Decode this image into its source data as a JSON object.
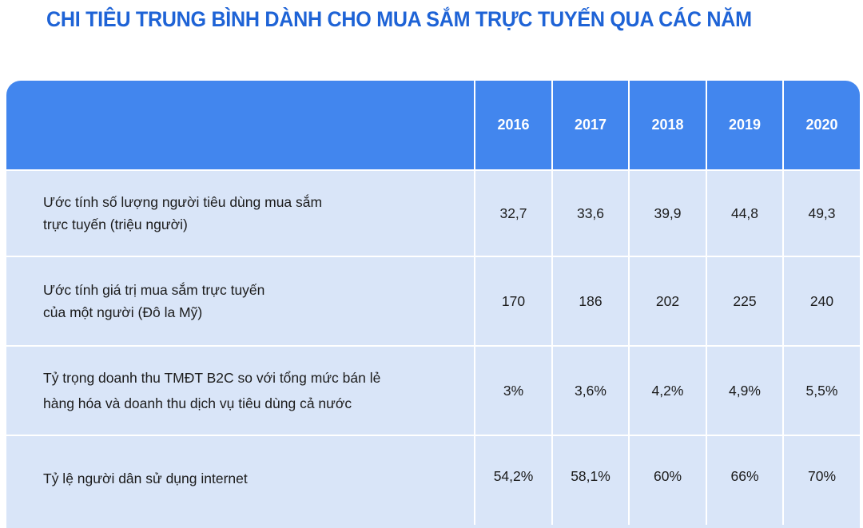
{
  "title": "CHI TIÊU TRUNG BÌNH DÀNH CHO MUA SẮM TRỰC TUYẾN QUA CÁC NĂM",
  "table": {
    "years": [
      "2016",
      "2017",
      "2018",
      "2019",
      "2020"
    ],
    "rows": [
      {
        "label_line1": "Ước tính số lượng người tiêu dùng mua sắm",
        "label_line2": "trực tuyến (triệu người)",
        "values": [
          "32,7",
          "33,6",
          "39,9",
          "44,8",
          "49,3"
        ]
      },
      {
        "label_line1": "Ước tính giá trị mua sắm trực tuyến",
        "label_line2": "của một người (Đô la Mỹ)",
        "values": [
          "170",
          "186",
          "202",
          "225",
          "240"
        ]
      },
      {
        "label_line1": "Tỷ trọng doanh thu TMĐT B2C so với tổng mức bán lẻ",
        "label_line2": "hàng hóa và doanh thu dịch vụ tiêu dùng cả nước",
        "values": [
          "3%",
          "3,6%",
          "4,2%",
          "4,9%",
          "5,5%"
        ]
      },
      {
        "label_line1": "Tỷ lệ người dân sử dụng internet",
        "label_line2": "",
        "values": [
          "54,2%",
          "58,1%",
          "60%",
          "66%",
          "70%"
        ]
      }
    ]
  }
}
